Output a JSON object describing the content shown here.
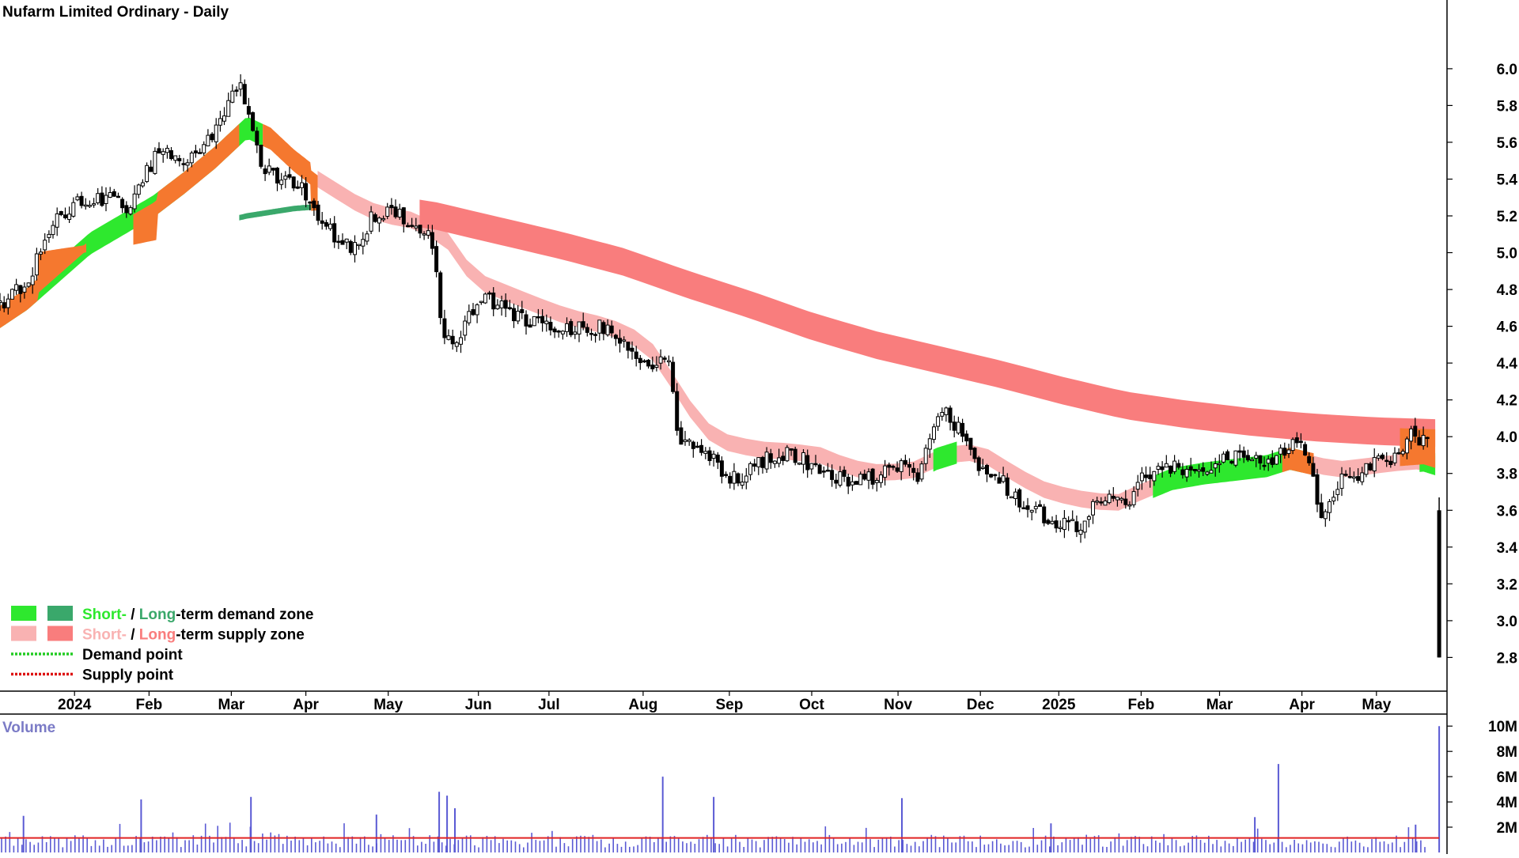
{
  "chart_data": {
    "type": "candlestick",
    "title": "Nufarm Limited Ordinary - Daily",
    "price_axis": {
      "ylim": [
        2.72,
        6.18
      ],
      "ticks": [
        "6.0",
        "5.8",
        "5.6",
        "5.4",
        "5.2",
        "5.0",
        "4.8",
        "4.6",
        "4.4",
        "4.2",
        "4.0",
        "3.8",
        "3.6",
        "3.4",
        "3.2",
        "3.0",
        "2.8"
      ]
    },
    "x_axis": {
      "labels": [
        "2024",
        "Feb",
        "Mar",
        "Apr",
        "May",
        "Jun",
        "Jul",
        "Aug",
        "Sep",
        "Oct",
        "Nov",
        "Dec",
        "2025",
        "Feb",
        "Mar",
        "Apr",
        "May"
      ],
      "positions": [
        0.2,
        1.15,
        2.2,
        3.15,
        4.2,
        5.35,
        6.25,
        7.45,
        8.55,
        9.6,
        10.7,
        11.75,
        12.75,
        13.8,
        14.8,
        15.85,
        16.8
      ],
      "xlim": [
        -0.75,
        17.7
      ]
    },
    "price_path": [
      [
        -0.75,
        4.72
      ],
      [
        -0.4,
        4.85
      ],
      [
        -0.1,
        5.15
      ],
      [
        0.2,
        5.28
      ],
      [
        0.6,
        5.3
      ],
      [
        0.9,
        5.25
      ],
      [
        1.1,
        5.42
      ],
      [
        1.3,
        5.58
      ],
      [
        1.6,
        5.5
      ],
      [
        1.9,
        5.6
      ],
      [
        2.1,
        5.75
      ],
      [
        2.3,
        5.92
      ],
      [
        2.45,
        5.7
      ],
      [
        2.6,
        5.45
      ],
      [
        2.8,
        5.4
      ],
      [
        3.1,
        5.35
      ],
      [
        3.3,
        5.2
      ],
      [
        3.5,
        5.1
      ],
      [
        3.75,
        5.0
      ],
      [
        4.0,
        5.2
      ],
      [
        4.3,
        5.22
      ],
      [
        4.6,
        5.15
      ],
      [
        4.75,
        5.1
      ],
      [
        4.9,
        4.52
      ],
      [
        5.1,
        4.55
      ],
      [
        5.3,
        4.7
      ],
      [
        5.5,
        4.75
      ],
      [
        5.8,
        4.65
      ],
      [
        6.2,
        4.6
      ],
      [
        6.6,
        4.58
      ],
      [
        7.0,
        4.6
      ],
      [
        7.15,
        4.55
      ],
      [
        7.4,
        4.45
      ],
      [
        7.6,
        4.4
      ],
      [
        7.8,
        4.38
      ],
      [
        7.9,
        3.95
      ],
      [
        8.1,
        3.98
      ],
      [
        8.3,
        3.9
      ],
      [
        8.5,
        3.75
      ],
      [
        8.75,
        3.8
      ],
      [
        9.0,
        3.88
      ],
      [
        9.3,
        3.9
      ],
      [
        9.6,
        3.85
      ],
      [
        9.9,
        3.78
      ],
      [
        10.2,
        3.76
      ],
      [
        10.5,
        3.8
      ],
      [
        10.8,
        3.85
      ],
      [
        10.95,
        3.72
      ],
      [
        11.1,
        4.0
      ],
      [
        11.25,
        4.15
      ],
      [
        11.45,
        4.05
      ],
      [
        11.7,
        3.85
      ],
      [
        11.9,
        3.8
      ],
      [
        12.15,
        3.7
      ],
      [
        12.4,
        3.6
      ],
      [
        12.7,
        3.55
      ],
      [
        13.0,
        3.52
      ],
      [
        13.15,
        3.6
      ],
      [
        13.35,
        3.65
      ],
      [
        13.6,
        3.62
      ],
      [
        13.85,
        3.8
      ],
      [
        14.1,
        3.85
      ],
      [
        14.4,
        3.8
      ],
      [
        14.7,
        3.85
      ],
      [
        15.0,
        3.88
      ],
      [
        15.3,
        3.85
      ],
      [
        15.55,
        3.9
      ],
      [
        15.7,
        3.95
      ],
      [
        15.8,
        4.0
      ],
      [
        15.95,
        3.85
      ],
      [
        16.1,
        3.58
      ],
      [
        16.3,
        3.75
      ],
      [
        16.6,
        3.8
      ],
      [
        16.85,
        3.9
      ],
      [
        17.05,
        3.88
      ],
      [
        17.25,
        4.02
      ],
      [
        17.35,
        3.98
      ],
      [
        17.45,
        3.95
      ]
    ],
    "final_bar": {
      "x": 17.6,
      "open": 3.6,
      "close": 2.8,
      "high": 3.67,
      "low": 2.8
    },
    "short_ema_path": [
      [
        -0.75,
        4.65
      ],
      [
        -0.4,
        4.75
      ],
      [
        0.0,
        4.9
      ],
      [
        0.4,
        5.05
      ],
      [
        0.8,
        5.15
      ],
      [
        1.2,
        5.25
      ],
      [
        1.6,
        5.38
      ],
      [
        2.0,
        5.52
      ],
      [
        2.4,
        5.68
      ],
      [
        2.7,
        5.62
      ],
      [
        3.0,
        5.5
      ],
      [
        3.3,
        5.4
      ],
      [
        3.6,
        5.32
      ],
      [
        3.9,
        5.24
      ],
      [
        4.2,
        5.2
      ],
      [
        4.6,
        5.17
      ],
      [
        5.0,
        5.05
      ],
      [
        5.3,
        4.85
      ],
      [
        5.6,
        4.8
      ],
      [
        6.0,
        4.73
      ],
      [
        6.5,
        4.65
      ],
      [
        7.0,
        4.6
      ],
      [
        7.3,
        4.55
      ],
      [
        7.6,
        4.45
      ],
      [
        7.9,
        4.25
      ],
      [
        8.2,
        4.05
      ],
      [
        8.5,
        3.97
      ],
      [
        8.9,
        3.93
      ],
      [
        9.3,
        3.92
      ],
      [
        9.7,
        3.9
      ],
      [
        10.1,
        3.83
      ],
      [
        10.5,
        3.8
      ],
      [
        10.9,
        3.82
      ],
      [
        11.2,
        3.88
      ],
      [
        11.5,
        3.92
      ],
      [
        11.8,
        3.9
      ],
      [
        12.1,
        3.82
      ],
      [
        12.5,
        3.72
      ],
      [
        12.9,
        3.67
      ],
      [
        13.2,
        3.65
      ],
      [
        13.5,
        3.64
      ],
      [
        13.8,
        3.7
      ],
      [
        14.2,
        3.77
      ],
      [
        14.6,
        3.8
      ],
      [
        15.0,
        3.82
      ],
      [
        15.4,
        3.84
      ],
      [
        15.7,
        3.88
      ],
      [
        16.0,
        3.85
      ],
      [
        16.3,
        3.82
      ],
      [
        16.7,
        3.84
      ],
      [
        17.1,
        3.86
      ],
      [
        17.4,
        3.87
      ],
      [
        17.55,
        3.85
      ]
    ],
    "long_ema_path": [
      [
        -0.75,
        4.95
      ],
      [
        0.0,
        5.0
      ],
      [
        0.8,
        5.05
      ],
      [
        1.6,
        5.12
      ],
      [
        2.4,
        5.2
      ],
      [
        3.0,
        5.24
      ],
      [
        3.6,
        5.26
      ],
      [
        4.2,
        5.24
      ],
      [
        4.8,
        5.2
      ],
      [
        5.6,
        5.12
      ],
      [
        6.4,
        5.04
      ],
      [
        7.2,
        4.95
      ],
      [
        8.0,
        4.83
      ],
      [
        8.8,
        4.72
      ],
      [
        9.6,
        4.6
      ],
      [
        10.4,
        4.5
      ],
      [
        11.2,
        4.42
      ],
      [
        12.0,
        4.34
      ],
      [
        12.8,
        4.25
      ],
      [
        13.6,
        4.17
      ],
      [
        14.4,
        4.12
      ],
      [
        15.2,
        4.08
      ],
      [
        16.0,
        4.05
      ],
      [
        16.8,
        4.03
      ],
      [
        17.55,
        4.02
      ]
    ],
    "zone_segments": [
      {
        "zone": "long-demand",
        "color": "#3aa86b",
        "x0": 2.3,
        "x1": 3.3
      },
      {
        "zone": "short-supply",
        "color": "#f9b2b2",
        "x0": 3.3,
        "x1": 17.55
      },
      {
        "zone": "long-supply",
        "color": "#f97d7d",
        "x0": 4.6,
        "x1": 17.55
      },
      {
        "zone": "short-demand",
        "color": "#2ee82e",
        "x0": -0.75,
        "x1": 2.6
      },
      {
        "zone": "short-demand",
        "color": "#2ee82e",
        "x0": 11.15,
        "x1": 11.45
      },
      {
        "zone": "short-demand",
        "color": "#2ee82e",
        "x0": 13.95,
        "x1": 15.85
      },
      {
        "zone": "short-demand",
        "color": "#2ee82e",
        "x0": 17.35,
        "x1": 17.55
      },
      {
        "zone": "transition",
        "color": "#f5782f",
        "x0": -0.75,
        "x1": 0.35
      },
      {
        "zone": "transition",
        "color": "#f5782f",
        "x0": 0.95,
        "x1": 2.3
      },
      {
        "zone": "transition",
        "color": "#f5782f",
        "x0": 2.6,
        "x1": 3.3
      },
      {
        "zone": "transition",
        "color": "#f5782f",
        "x0": 15.6,
        "x1": 16.0
      },
      {
        "zone": "transition",
        "color": "#f5782f",
        "x0": 17.1,
        "x1": 17.55
      }
    ],
    "volume": {
      "label": "Volume",
      "ylim": [
        0,
        10.2
      ],
      "ticks": [
        "10M",
        "8M",
        "6M",
        "4M",
        "2M"
      ],
      "average": 1.15,
      "spikes": [
        {
          "x": -0.45,
          "v": 2.9
        },
        {
          "x": 1.05,
          "v": 4.2
        },
        {
          "x": 2.45,
          "v": 4.4
        },
        {
          "x": 4.05,
          "v": 3.0
        },
        {
          "x": 4.85,
          "v": 4.8
        },
        {
          "x": 4.95,
          "v": 4.5
        },
        {
          "x": 5.05,
          "v": 3.5
        },
        {
          "x": 7.7,
          "v": 6.0
        },
        {
          "x": 8.35,
          "v": 4.4
        },
        {
          "x": 10.75,
          "v": 4.3
        },
        {
          "x": 12.65,
          "v": 2.3
        },
        {
          "x": 15.55,
          "v": 7.0
        },
        {
          "x": 15.25,
          "v": 2.8
        },
        {
          "x": 17.3,
          "v": 2.2
        },
        {
          "x": 17.6,
          "v": 10.0
        }
      ],
      "colors": {
        "bars": "#5a5ad4",
        "average": "#e02424"
      }
    },
    "legend": {
      "rows": [
        {
          "kind": "zone",
          "swatches": [
            "#2ee82e",
            "#3aa86b"
          ],
          "parts": [
            {
              "text": "Short-",
              "color": "#2ee82e"
            },
            {
              "text": " / ",
              "color": "#000000"
            },
            {
              "text": "Long",
              "color": "#3aa86b"
            },
            {
              "text": "-term demand zone",
              "color": "#000000"
            }
          ]
        },
        {
          "kind": "zone",
          "swatches": [
            "#f9b2b2",
            "#f97d7d"
          ],
          "parts": [
            {
              "text": "Short-",
              "color": "#f9b2b2"
            },
            {
              "text": " / ",
              "color": "#000000"
            },
            {
              "text": "Long",
              "color": "#f97d7d"
            },
            {
              "text": "-term supply zone",
              "color": "#000000"
            }
          ]
        },
        {
          "kind": "point",
          "line_color": "#22cc22",
          "parts": [
            {
              "text": "Demand point",
              "color": "#000000"
            }
          ]
        },
        {
          "kind": "point",
          "line_color": "#dd1111",
          "parts": [
            {
              "text": "Supply point",
              "color": "#000000"
            }
          ]
        }
      ]
    },
    "colors": {
      "candle": "#000000",
      "short_demand": "#2ee82e",
      "long_demand": "#3aa86b",
      "short_supply": "#f9b2b2",
      "long_supply": "#f97d7d",
      "transition": "#f5782f"
    },
    "grid": false
  }
}
